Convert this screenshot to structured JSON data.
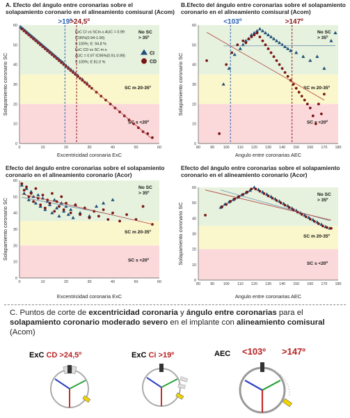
{
  "chart_data": [
    {
      "type": "scatter",
      "title": "A. Efecto del ángulo entre coronarias sobre el solapamiento coronario en el alineamiento comisural (Acom)",
      "xlabel": "Excentricidad coronaria ExC",
      "ylabel": "Solapamiento coronario SC",
      "xlim": [
        0,
        60
      ],
      "ylim": [
        0,
        60
      ],
      "xticks": [
        "0",
        "10",
        "20",
        "30",
        "40",
        "50",
        "60"
      ],
      "yticks": [
        "0",
        "10",
        "20",
        "30",
        "40",
        "50",
        "60"
      ],
      "zones": [
        {
          "label": "No SC\n> 35º",
          "from": 35,
          "to": 60,
          "color": "#e6f2dd"
        },
        {
          "label": "SC m 20-35º",
          "from": 20,
          "to": 35,
          "color": "#fbf7cc"
        },
        {
          "label": "SC s <20º",
          "from": 0,
          "to": 20,
          "color": "#fbd9db"
        }
      ],
      "cutoffs": [
        {
          "label": ">19º",
          "x": 19.5,
          "color": "#2a62b3"
        },
        {
          "label": ">24,5º",
          "x": 24.5,
          "color": "#8b1a1a"
        }
      ],
      "stats_box": [
        "ExC CI vs SCm-s AUC = 0.99",
        "IC95%(0.94-1.00)",
        "S 100%; E: 94.8 %",
        "ExC CD vs SC m-s",
        "AUC = 0.97 IC95%(0.91-0.99)",
        "S 100%; E 81.0 %"
      ],
      "legend": [
        {
          "name": "CI",
          "marker": "triangle",
          "color": "#1f4f7a"
        },
        {
          "name": "CD",
          "marker": "circle",
          "color": "#7a1515"
        }
      ],
      "legend_position": "top-right",
      "series": [
        {
          "name": "CI",
          "marker": "triangle",
          "color": "#1f4f7a",
          "x": [
            0.5,
            1,
            1.5,
            2,
            2.5,
            3,
            3.5,
            4,
            4.5,
            5,
            5.5,
            6,
            6.5,
            7,
            7.5,
            8,
            8.5,
            9,
            9.5,
            10,
            10.5,
            11,
            11.5,
            12,
            12.5,
            13,
            13.5,
            14,
            14.5,
            15,
            15.5,
            16,
            16.5,
            17,
            17.5,
            18,
            18.5,
            19,
            20,
            21,
            22,
            23,
            24,
            25,
            27,
            29
          ],
          "y": [
            59,
            58.5,
            58,
            57.5,
            57,
            56.5,
            56,
            55.5,
            55,
            54.5,
            54,
            53.5,
            53,
            52.5,
            52,
            51.5,
            51,
            50.5,
            50,
            49.5,
            49,
            48.5,
            48,
            47.5,
            47,
            46.5,
            46,
            45.5,
            45,
            44.5,
            44,
            43.5,
            43,
            42.5,
            42,
            41.5,
            41,
            40.5,
            39.5,
            38.5,
            37.5,
            36.5,
            35.5,
            34.5,
            32.5,
            30.5
          ]
        },
        {
          "name": "CD",
          "marker": "circle",
          "color": "#7a1515",
          "x": [
            1,
            2,
            3,
            4,
            5,
            6,
            7,
            8,
            9,
            10,
            11,
            12,
            13,
            14,
            15,
            16,
            17,
            18,
            19,
            20,
            21,
            22,
            23,
            24,
            25,
            26,
            27,
            28,
            29,
            30,
            31,
            33,
            35,
            37,
            39,
            41,
            43,
            45,
            47,
            49,
            51,
            53,
            55,
            57
          ],
          "y": [
            58,
            57,
            56,
            55,
            54,
            53,
            52,
            51,
            50,
            49,
            48,
            47,
            46,
            45,
            44,
            43,
            42,
            41,
            40,
            39,
            38,
            37,
            36,
            35,
            34,
            33,
            32,
            31,
            30,
            29,
            28,
            26,
            24,
            22,
            20,
            18,
            16,
            14,
            12,
            10,
            8,
            6,
            5,
            3
          ]
        }
      ]
    },
    {
      "type": "scatter",
      "title": "B.Efecto del ángulo entre coronarias sobre el solapamiento coronario en el alineamiento comisural (Acom)",
      "xlabel": "Angulo entre coronarias AEC",
      "ylabel": "Solapamiento coronario SC",
      "xlim": [
        80,
        180
      ],
      "ylim": [
        0,
        60
      ],
      "xticks": [
        "80",
        "90",
        "100",
        "110",
        "120",
        "130",
        "140",
        "150",
        "160",
        "170",
        "180"
      ],
      "yticks": [
        "0",
        "10",
        "20",
        "30",
        "40",
        "50",
        "60"
      ],
      "zones": [
        {
          "label": "No SC\n> 35º",
          "from": 35,
          "to": 60,
          "color": "#e6f2dd"
        },
        {
          "label": "SC m 20-35º",
          "from": 20,
          "to": 35,
          "color": "#fbf7cc"
        },
        {
          "label": "SC s <20º",
          "from": 0,
          "to": 20,
          "color": "#fbd9db"
        }
      ],
      "cutoffs": [
        {
          "label": "<103º",
          "x": 103,
          "color": "#2a62b3"
        },
        {
          "label": ">147º",
          "x": 147,
          "color": "#8b1a1a"
        }
      ],
      "series": [
        {
          "name": "CI",
          "marker": "triangle",
          "color": "#1f4f7a",
          "x": [
            98,
            102,
            106,
            110,
            112,
            114,
            116,
            118,
            120,
            122,
            124,
            126,
            128,
            130,
            132,
            134,
            136,
            138,
            140,
            142,
            144,
            146,
            150,
            155,
            160,
            165,
            170,
            175,
            178
          ],
          "y": [
            30,
            38,
            45,
            48,
            50,
            52,
            53,
            55,
            56,
            57,
            58,
            57,
            56,
            55,
            54,
            53,
            52,
            51,
            50,
            49,
            48,
            47,
            46,
            44,
            42,
            44,
            38,
            52,
            56
          ]
        },
        {
          "name": "CD",
          "marker": "circle",
          "color": "#7a1515",
          "x": [
            86,
            95,
            100,
            104,
            108,
            112,
            114,
            116,
            118,
            120,
            122,
            124,
            126,
            128,
            130,
            132,
            134,
            136,
            138,
            140,
            142,
            144,
            146,
            148,
            150,
            152,
            154,
            156,
            158,
            160,
            162,
            164,
            166,
            168,
            170
          ],
          "y": [
            42,
            5,
            40,
            46,
            50,
            52,
            51,
            53,
            54,
            55,
            56,
            54,
            52,
            50,
            48,
            46,
            44,
            42,
            40,
            38,
            36,
            34,
            32,
            30,
            28,
            26,
            24,
            22,
            20,
            18,
            14,
            10,
            20,
            15,
            25
          ]
        }
      ]
    },
    {
      "type": "scatter",
      "title": "Efecto del ángulo entre coronarias sobre el solapamiento coronario en el alineamiento coronario (Acor)",
      "xlabel": "Excentricidad coronaria ExC",
      "ylabel": "Solapamiento coronario SC",
      "xlim": [
        0,
        60
      ],
      "ylim": [
        0,
        60
      ],
      "xticks": [
        "0",
        "10",
        "20",
        "30",
        "40",
        "50",
        "60"
      ],
      "yticks": [
        "0",
        "10",
        "20",
        "30",
        "40",
        "50",
        "60"
      ],
      "zones": [
        {
          "label": "No SC\n> 35º",
          "from": 35,
          "to": 60,
          "color": "#e6f2dd"
        },
        {
          "label": "SC m 20-35º",
          "from": 20,
          "to": 35,
          "color": "#fbf7cc"
        },
        {
          "label": "SC s <20º",
          "from": 0,
          "to": 20,
          "color": "#fbd9db"
        }
      ],
      "series": [
        {
          "name": "CI",
          "marker": "triangle",
          "color": "#1f4f7a",
          "x": [
            1,
            2,
            3,
            4,
            5,
            6,
            7,
            8,
            9,
            10,
            11,
            12,
            13,
            14,
            15,
            16,
            17,
            18,
            19,
            20,
            21,
            22,
            23,
            24,
            26,
            28,
            30,
            33,
            36,
            40
          ],
          "y": [
            57,
            52,
            55,
            48,
            53,
            50,
            46,
            51,
            44,
            49,
            42,
            47,
            45,
            40,
            48,
            43,
            38,
            46,
            41,
            44,
            39,
            42,
            37,
            45,
            40,
            43,
            38,
            44,
            46,
            48
          ]
        },
        {
          "name": "CD",
          "marker": "circle",
          "color": "#7a1515",
          "x": [
            1,
            2,
            3,
            4,
            5,
            6,
            7,
            8,
            9,
            10,
            11,
            12,
            13,
            14,
            15,
            16,
            17,
            18,
            19,
            20,
            22,
            24,
            26,
            28,
            30,
            32,
            34,
            36,
            38,
            40,
            43,
            46,
            50,
            53,
            57
          ],
          "y": [
            58,
            54,
            56,
            50,
            52,
            47,
            55,
            49,
            45,
            51,
            43,
            48,
            46,
            52,
            41,
            47,
            44,
            50,
            42,
            46,
            40,
            45,
            39,
            43,
            37,
            41,
            38,
            42,
            36,
            40,
            35,
            39,
            36,
            44,
            33
          ]
        }
      ]
    },
    {
      "type": "scatter",
      "title": "Efecto del ángulo entre coronarias sobre el solapamiento coronario en el alineamiento coronario (Acor)",
      "xlabel": "Angulo entre coronarias AEC",
      "ylabel": "Solapamiento coronario SC",
      "xlim": [
        80,
        180
      ],
      "ylim": [
        0,
        60
      ],
      "xticks": [
        "80",
        "90",
        "100",
        "110",
        "120",
        "130",
        "140",
        "150",
        "160",
        "170",
        "180"
      ],
      "yticks": [
        "0",
        "10",
        "20",
        "30",
        "40",
        "50",
        "60"
      ],
      "zones": [
        {
          "label": "No SC\n> 35º",
          "from": 35,
          "to": 60,
          "color": "#e6f2dd"
        },
        {
          "label": "SC m 20-35º",
          "from": 20,
          "to": 35,
          "color": "#fbf7cc"
        },
        {
          "label": "SC s <20º",
          "from": 0,
          "to": 20,
          "color": "#fbd9db"
        }
      ],
      "series": [
        {
          "name": "CI",
          "marker": "triangle",
          "color": "#1f4f7a",
          "x": [
            96,
            99,
            102,
            105,
            108,
            111,
            114,
            117,
            120,
            123,
            126,
            129,
            132,
            135,
            138,
            141,
            144,
            147,
            150,
            153,
            156,
            159,
            162,
            165,
            168,
            171,
            174
          ],
          "y": [
            47,
            49,
            50.5,
            52,
            53.5,
            55,
            56.5,
            58,
            60,
            58.5,
            57,
            55.5,
            54,
            52.5,
            51,
            49.5,
            48,
            46.5,
            45,
            43.5,
            42,
            40.5,
            39,
            37.5,
            36,
            34.5,
            33.5
          ]
        },
        {
          "name": "CD",
          "marker": "circle",
          "color": "#7a1515",
          "x": [
            85,
            97,
            100,
            103,
            106,
            109,
            112,
            115,
            118,
            121,
            124,
            127,
            130,
            133,
            136,
            139,
            142,
            145,
            148,
            151,
            154,
            157,
            160,
            163,
            166,
            169,
            172,
            175
          ],
          "y": [
            42,
            47.5,
            49,
            51,
            52.5,
            54,
            55.5,
            57,
            59,
            59,
            57.5,
            56,
            54.5,
            53,
            51.5,
            50,
            48.5,
            47,
            45.5,
            44,
            42.5,
            41,
            39.5,
            38,
            36.5,
            35,
            34,
            33.5
          ]
        }
      ]
    }
  ],
  "section_c": {
    "title_prefix": "C. Puntos de corte de ",
    "title_b1": "excentricidad coronaria",
    "title_mid1": " y ",
    "title_b2": "ángulo entre coronarias",
    "title_mid2": " para el ",
    "title_b3": "solapamiento coronario moderado severo",
    "title_mid3": " en el implante con ",
    "title_b4": "alineamiento comisural",
    "title_suffix": " (Acom)",
    "dials": [
      {
        "label_a": "ExC ",
        "label_b": "CD >24,5º",
        "color_b": "#b81f1f"
      },
      {
        "label_a": "ExC ",
        "label_b": "Ci >19º",
        "color_b": "#b81f1f"
      },
      {
        "label_a": "AEC",
        "label_b": "<103º",
        "label_c": ">147º",
        "color_b": "#b81f1f"
      }
    ]
  }
}
